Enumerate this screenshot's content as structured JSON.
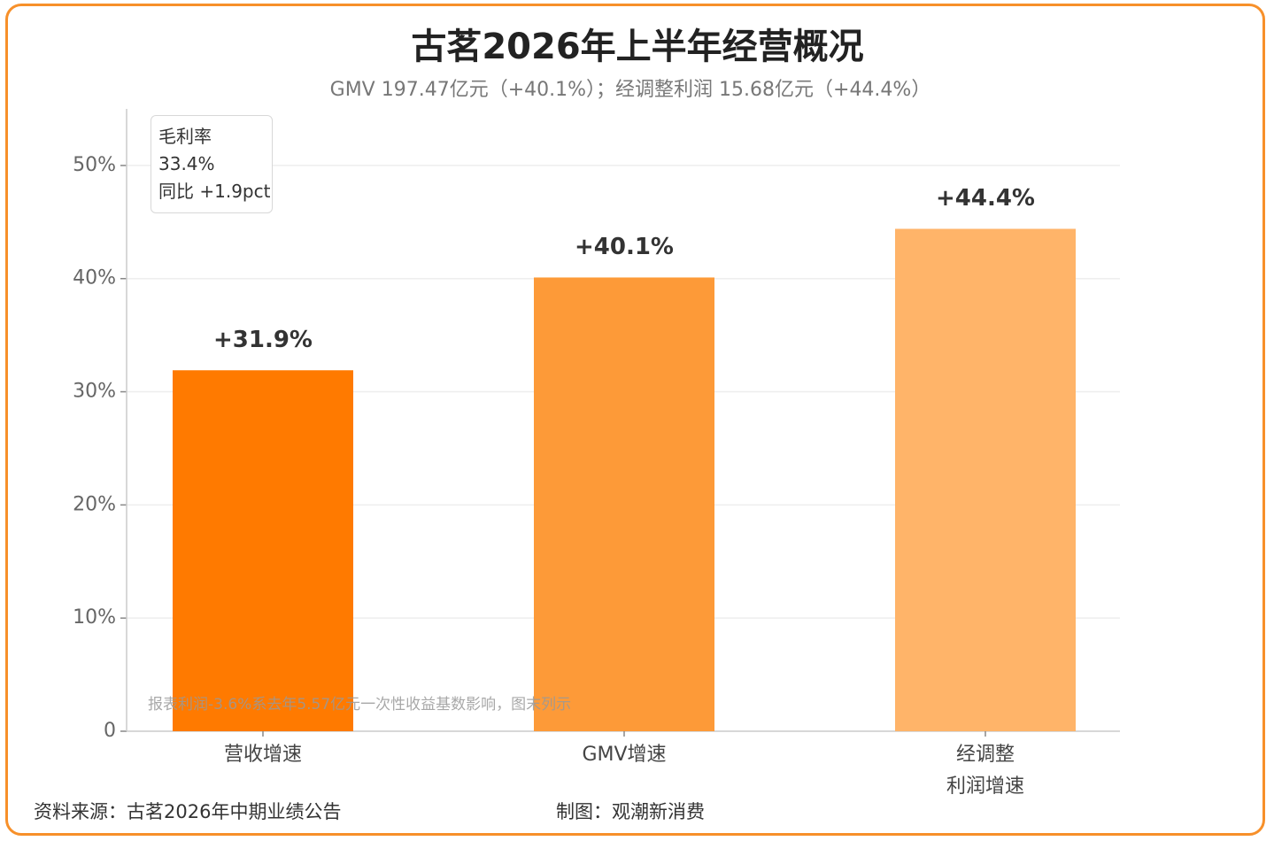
{
  "chart_data": {
    "type": "bar",
    "title": "古茗2026年上半年经营概况",
    "subtitle": "GMV 197.47亿元（+40.1%）；经调整利润 15.68亿元（+44.4%）",
    "categories": [
      "营收增速",
      "GMV增速",
      "经调整\n利润增速"
    ],
    "values": [
      31.9,
      40.1,
      44.4
    ],
    "value_labels": [
      "+31.9%",
      "+40.1%",
      "+44.4%"
    ],
    "colors": [
      "#ff7a00",
      "#fd9a38",
      "#ffb469"
    ],
    "ylim": [
      0,
      55
    ],
    "yticks": [
      0,
      {
        "value": 10,
        "label": "10%"
      },
      {
        "value": 20,
        "label": "20%"
      },
      {
        "value": 30,
        "label": "30%"
      },
      {
        "value": 40,
        "label": "40%"
      },
      {
        "value": 50,
        "label": "50%"
      }
    ],
    "grid": true,
    "annotation": "毛利率\n33.4%\n同比 +1.9pct",
    "note": "报表利润-3.6%系去年5.57亿元一次性收益基数影响，图末列示",
    "source": "资料来源：古茗2026年中期业绩公告",
    "credit": "制图：观潮新消费"
  }
}
